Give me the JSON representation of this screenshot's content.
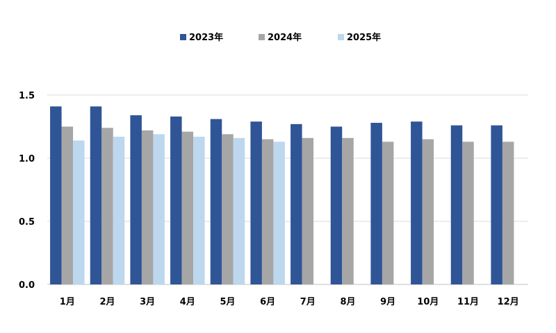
{
  "chart_data": {
    "type": "bar",
    "title": "",
    "xlabel": "",
    "ylabel": "",
    "categories": [
      "1月",
      "2月",
      "3月",
      "4月",
      "5月",
      "6月",
      "7月",
      "8月",
      "9月",
      "10月",
      "11月",
      "12月"
    ],
    "series": [
      {
        "name": "2023年",
        "color": "#2f5597",
        "values": [
          1.41,
          1.41,
          1.34,
          1.33,
          1.31,
          1.29,
          1.27,
          1.25,
          1.28,
          1.29,
          1.26,
          1.26
        ]
      },
      {
        "name": "2024年",
        "color": "#a6a6a6",
        "values": [
          1.25,
          1.24,
          1.22,
          1.21,
          1.19,
          1.15,
          1.16,
          1.16,
          1.13,
          1.15,
          1.13,
          1.13
        ]
      },
      {
        "name": "2025年",
        "color": "#bdd7ee",
        "values": [
          1.14,
          1.17,
          1.19,
          1.17,
          1.16,
          1.13,
          null,
          null,
          null,
          null,
          null,
          null
        ]
      }
    ],
    "ylim": [
      0,
      1.5
    ],
    "yticks": [
      0,
      0.5,
      1.0,
      1.5
    ],
    "ytick_labels": [
      "0.0",
      "0.5",
      "1.0",
      "1.5"
    ],
    "grid": true,
    "legend_position": "top-center"
  }
}
